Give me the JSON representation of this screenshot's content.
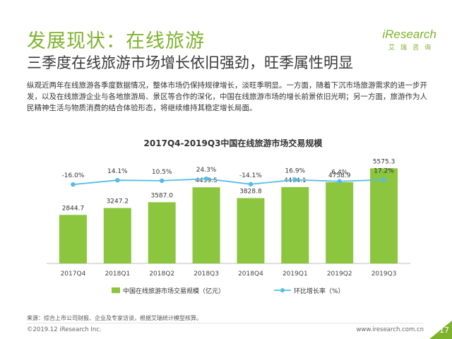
{
  "page": {
    "title": "发展现状：在线旅游",
    "subtitle": "三季度在线旅游市场增长依旧强劲，旺季属性明显",
    "body": "纵观近两年在线旅游各季度数据情况，整体市场仍保持规律增长，淡旺季明显。一方面，随着下沉市场旅游需求的进一步开发，以及在线旅游企业与各地旅游局、景区等合作的深化，中国在线旅游市场的增长前景依旧光明；另一方面，旅游作为人民精神生活与物质消费的结合体验形态，将继续维持其稳定增长局面。",
    "source": "来源：综合上市公司财报、企业及专家访谈，根据艾瑞统计模型核算。",
    "copyright": "©2019.12 iResearch Inc.",
    "website": "www.iresearch.com.cn",
    "page_number": "17"
  },
  "logo": {
    "brand": "iResearch",
    "cn": "艾瑞咨询"
  },
  "colors": {
    "accent_green": "#7fb32e",
    "bar_green": "#8cc63f",
    "line_blue": "#54bde6"
  },
  "chart_data": {
    "type": "bar",
    "title": "2017Q4-2019Q3中国在线旅游市场交易规模",
    "categories": [
      "2017Q4",
      "2018Q1",
      "2018Q2",
      "2018Q3",
      "2018Q4",
      "2019Q1",
      "2019Q2",
      "2019Q3"
    ],
    "series": [
      {
        "name": "中国在线旅游市场交易规模（亿元）",
        "type": "bar",
        "values": [
          2844.7,
          3247.2,
          3587.0,
          4459.5,
          3828.8,
          4474.1,
          4758.9,
          5575.3
        ],
        "labels": [
          "2844.7",
          "3247.2",
          "3587.0",
          "4459.5",
          "3828.8",
          "4474.1",
          "4758.9",
          "5575.3"
        ]
      },
      {
        "name": "环比增长率（%）",
        "type": "line",
        "values": [
          -16.0,
          14.1,
          10.5,
          24.3,
          -14.1,
          16.9,
          6.4,
          17.2
        ],
        "labels": [
          "-16.0%",
          "14.1%",
          "10.5%",
          "24.3%",
          "-14.1%",
          "16.9%",
          "6.4%",
          "17.2%"
        ]
      }
    ],
    "legend_position": "bottom",
    "grid": false
  }
}
